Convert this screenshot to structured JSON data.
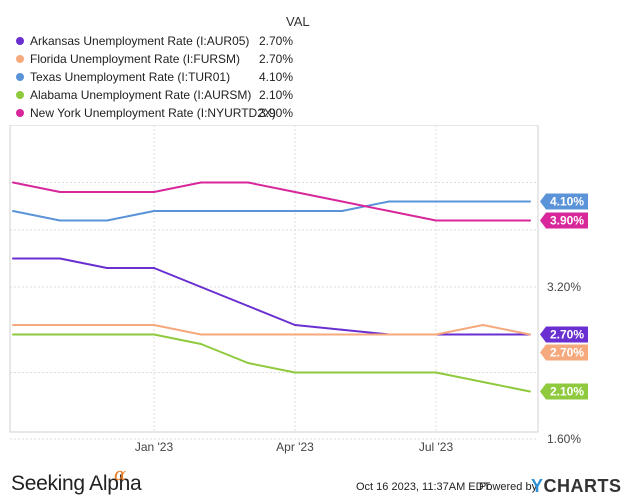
{
  "legend": {
    "header": "VAL",
    "items": [
      {
        "name": "Arkansas Unemployment Rate (I:AUR05)",
        "value": "2.70%",
        "color": "#6a2fd1"
      },
      {
        "name": "Florida Unemployment Rate (I:FURSM)",
        "value": "2.70%",
        "color": "#f6a97c"
      },
      {
        "name": "Texas Unemployment Rate (I:TUR01)",
        "value": "4.10%",
        "color": "#5b93d9"
      },
      {
        "name": "Alabama Unemployment Rate (I:AURSM)",
        "value": "2.10%",
        "color": "#8fca3e"
      },
      {
        "name": "New York Unemployment Rate (I:NYURTD2X)",
        "value": "3.90%",
        "color": "#d8279b"
      }
    ]
  },
  "chart_data": {
    "type": "line",
    "x": [
      "2022-10",
      "2022-11",
      "2022-12",
      "2023-01",
      "2023-02",
      "2023-03",
      "2023-04",
      "2023-05",
      "2023-06",
      "2023-07",
      "2023-08",
      "2023-09"
    ],
    "xticks": [
      {
        "label": "Jan '23",
        "x": "2023-01"
      },
      {
        "label": "Apr '23",
        "x": "2023-04"
      },
      {
        "label": "Jul '23",
        "x": "2023-07"
      }
    ],
    "yticks": [
      {
        "label": "3.20%",
        "value": 3.2
      },
      {
        "label": "1.60%",
        "value": 1.6
      }
    ],
    "ylim": [
      1.45,
      4.55
    ],
    "grid": true,
    "series": [
      {
        "name": "Arkansas Unemployment Rate (I:AUR05)",
        "values": [
          3.5,
          3.5,
          3.4,
          3.4,
          3.2,
          3.0,
          2.8,
          2.75,
          2.7,
          2.7,
          2.7,
          2.7
        ],
        "color": "#6a2fd1",
        "end_label": "2.70%"
      },
      {
        "name": "Florida Unemployment Rate (I:FURSM)",
        "values": [
          2.8,
          2.8,
          2.8,
          2.8,
          2.7,
          2.7,
          2.7,
          2.7,
          2.7,
          2.7,
          2.8,
          2.7
        ],
        "color": "#f6a97c",
        "end_label": "2.70%"
      },
      {
        "name": "Texas Unemployment Rate (I:TUR01)",
        "values": [
          4.0,
          3.9,
          3.9,
          4.0,
          4.0,
          4.0,
          4.0,
          4.0,
          4.1,
          4.1,
          4.1,
          4.1
        ],
        "color": "#5b93d9",
        "end_label": "4.10%"
      },
      {
        "name": "Alabama Unemployment Rate (I:AURSM)",
        "values": [
          2.7,
          2.7,
          2.7,
          2.7,
          2.6,
          2.4,
          2.3,
          2.3,
          2.3,
          2.3,
          2.2,
          2.1
        ],
        "color": "#8fca3e",
        "end_label": "2.10%"
      },
      {
        "name": "New York Unemployment Rate (I:NYURTD2X)",
        "values": [
          4.3,
          4.2,
          4.2,
          4.2,
          4.3,
          4.3,
          4.2,
          4.1,
          4.0,
          3.9,
          3.9,
          3.9
        ],
        "color": "#d8279b",
        "end_label": "3.90%"
      }
    ]
  },
  "footer": {
    "brand": "Seeking Alpha",
    "brand_mark": "α",
    "timestamp": "Oct 16 2023, 11:37AM EDT.",
    "powered_by": "Powered by",
    "ycharts_y": "Y",
    "ycharts_rest": "CHARTS"
  }
}
